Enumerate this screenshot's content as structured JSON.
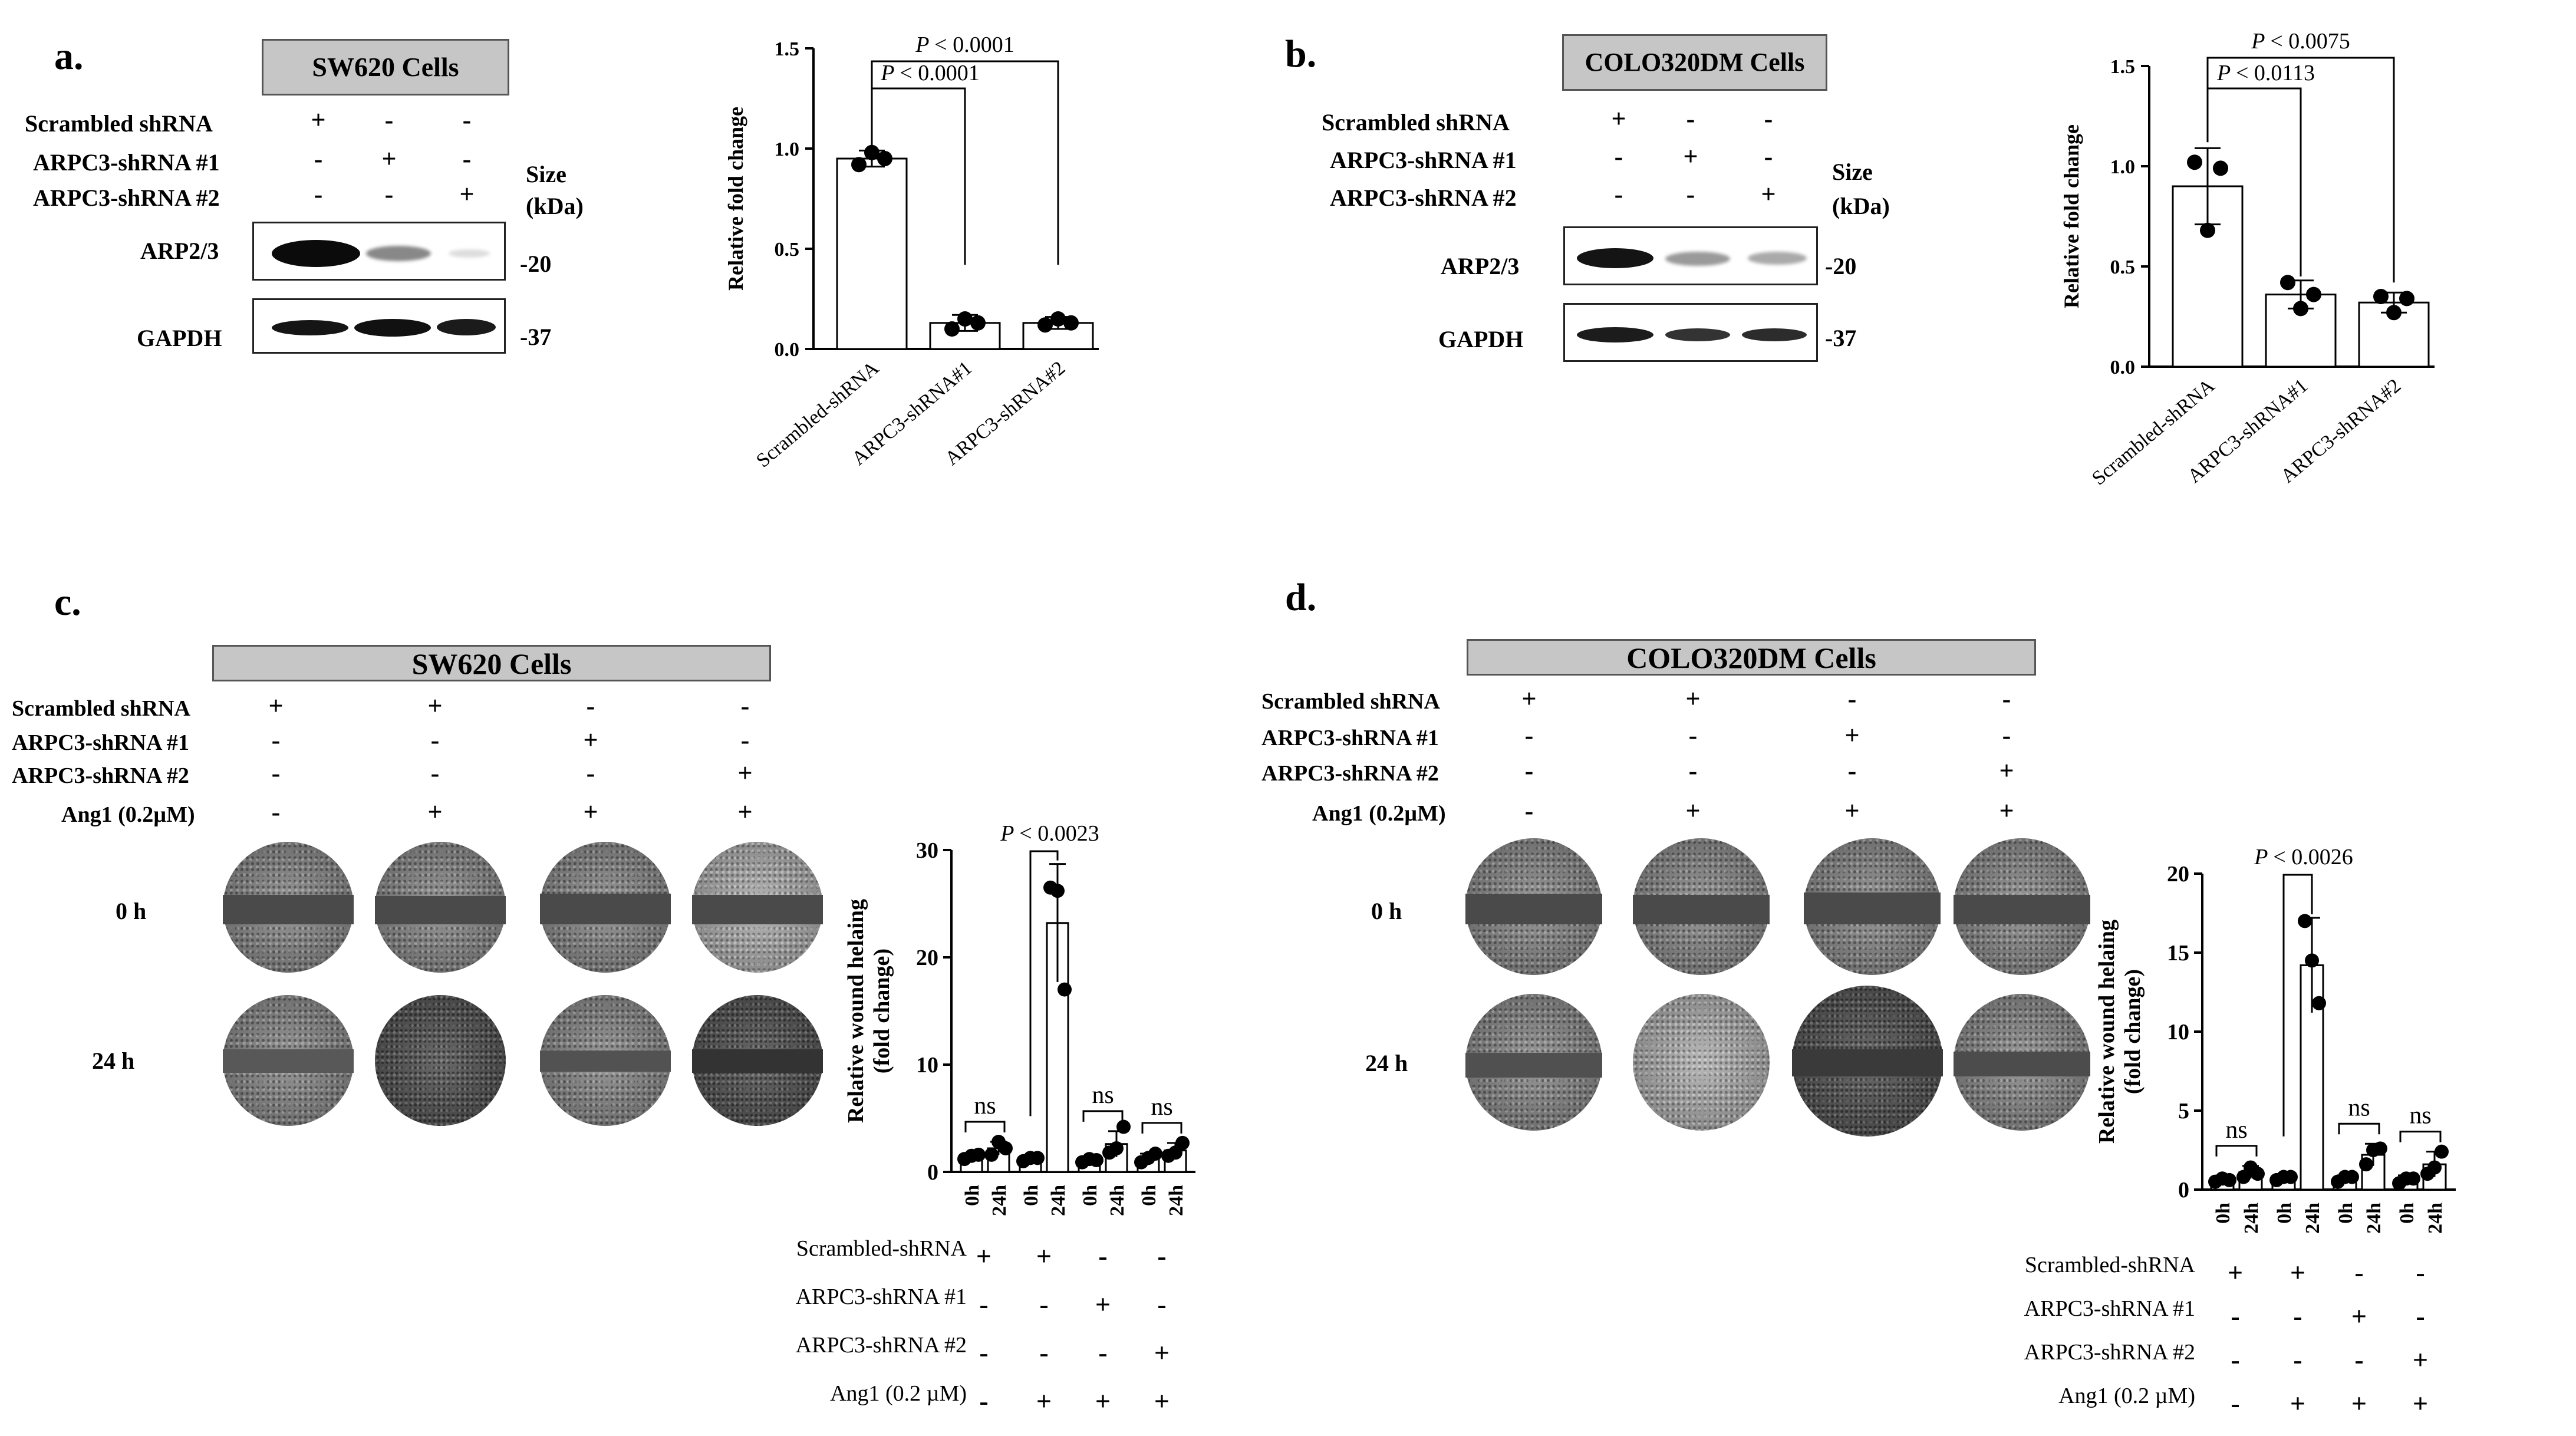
{
  "panel_a": {
    "label": "a.",
    "title": "SW620 Cells",
    "rows": [
      "Scrambled shRNA",
      "ARPC3-shRNA #1",
      "ARPC3-shRNA #2"
    ],
    "marks": [
      [
        "+",
        "-",
        "-"
      ],
      [
        "-",
        "+",
        "-"
      ],
      [
        "-",
        "-",
        "+"
      ]
    ],
    "size_label_1": "Size",
    "size_label_2": "(kDa)",
    "blot_labels": [
      "ARP2/3",
      "GAPDH"
    ],
    "kda": [
      "-20",
      "-37"
    ]
  },
  "panel_b": {
    "label": "b.",
    "title": "COLO320DM Cells",
    "rows": [
      "Scrambled shRNA",
      "ARPC3-shRNA #1",
      "ARPC3-shRNA #2"
    ],
    "marks": [
      [
        "+",
        "-",
        "-"
      ],
      [
        "-",
        "+",
        "-"
      ],
      [
        "-",
        "-",
        "+"
      ]
    ],
    "size_label_1": "Size",
    "size_label_2": "(kDa)",
    "blot_labels": [
      "ARP2/3",
      "GAPDH"
    ],
    "kda": [
      "-20",
      "-37"
    ]
  },
  "panel_c": {
    "label": "c.",
    "title": "SW620 Cells",
    "rows": [
      "Scrambled shRNA",
      "ARPC3-shRNA #1",
      "ARPC3-shRNA #2",
      "Ang1 (0.2µM)"
    ],
    "marks": [
      [
        "+",
        "+",
        "-",
        "-"
      ],
      [
        "-",
        "-",
        "+",
        "-"
      ],
      [
        "-",
        "-",
        "-",
        "+"
      ],
      [
        "-",
        "+",
        "+",
        "+"
      ]
    ],
    "time_labels": [
      "0 h",
      "24 h"
    ],
    "bottom_rows": [
      "Scrambled-shRNA",
      "ARPC3-shRNA #1",
      "ARPC3-shRNA #2",
      "Ang1 (0.2 µM)"
    ],
    "bottom_marks": [
      [
        "+",
        "+",
        "-",
        "-"
      ],
      [
        "-",
        "-",
        "+",
        "-"
      ],
      [
        "-",
        "-",
        "-",
        "+"
      ],
      [
        "-",
        "+",
        "+",
        "+"
      ]
    ]
  },
  "panel_d": {
    "label": "d.",
    "title": "COLO320DM Cells",
    "rows": [
      "Scrambled shRNA",
      "ARPC3-shRNA #1",
      "ARPC3-shRNA #2",
      "Ang1 (0.2µM)"
    ],
    "marks": [
      [
        "+",
        "+",
        "-",
        "-"
      ],
      [
        "-",
        "-",
        "+",
        "-"
      ],
      [
        "-",
        "-",
        "-",
        "+"
      ],
      [
        "-",
        "+",
        "+",
        "+"
      ]
    ],
    "time_labels": [
      "0 h",
      "24 h"
    ],
    "bottom_rows": [
      "Scrambled-shRNA",
      "ARPC3-shRNA #1",
      "ARPC3-shRNA #2",
      "Ang1 (0.2 µM)"
    ],
    "bottom_marks": [
      [
        "+",
        "+",
        "-",
        "-"
      ],
      [
        "-",
        "-",
        "+",
        "-"
      ],
      [
        "-",
        "-",
        "-",
        "+"
      ],
      [
        "-",
        "+",
        "+",
        "+"
      ]
    ]
  },
  "chart_data": [
    {
      "type": "bar",
      "panel": "a",
      "categories": [
        "Scrambled-shRNA",
        "ARPC3-shRNA#1",
        "ARPC3-shRNA#2"
      ],
      "values": [
        0.95,
        0.13,
        0.13
      ],
      "errors": [
        0.04,
        0.04,
        0.03
      ],
      "points": [
        [
          0.92,
          0.98,
          0.95
        ],
        [
          0.1,
          0.15,
          0.13
        ],
        [
          0.12,
          0.15,
          0.13
        ]
      ],
      "ylabel": "Relative  fold change",
      "ylim": [
        0,
        1.5
      ],
      "yticks": [
        "0.0",
        "0.5",
        "1.0",
        "1.5"
      ],
      "annotations": [
        "P < 0.0001",
        "P < 0.0001"
      ],
      "p_prefix": "P",
      "p_values": [
        "< 0.0001",
        "< 0.0001"
      ]
    },
    {
      "type": "bar",
      "panel": "b",
      "categories": [
        "Scrambled-shRNA",
        "ARPC3-shRNA#1",
        "ARPC3-shRNA#2"
      ],
      "values": [
        0.9,
        0.36,
        0.32
      ],
      "errors": [
        0.19,
        0.07,
        0.05
      ],
      "points": [
        [
          1.02,
          0.68,
          0.99
        ],
        [
          0.42,
          0.29,
          0.36
        ],
        [
          0.35,
          0.27,
          0.34
        ]
      ],
      "ylabel": "Relative  fold change",
      "ylim": [
        0,
        1.5
      ],
      "yticks": [
        "0.0",
        "0.5",
        "1.0",
        "1.5"
      ],
      "annotations": [
        "P < 0.0113",
        "P < 0.0075"
      ],
      "p_prefix": "P",
      "p_values": [
        "< 0.0113",
        "< 0.0075"
      ]
    },
    {
      "type": "bar",
      "panel": "c",
      "categories": [
        "0h",
        "24h",
        "0h",
        "24h",
        "0h",
        "24h",
        "0h",
        "24h"
      ],
      "values": [
        1.4,
        2.2,
        1.2,
        23.2,
        1.1,
        2.6,
        1.3,
        2.0
      ],
      "errors": [
        0.3,
        0.6,
        0.3,
        5.5,
        0.3,
        1.2,
        0.4,
        0.7
      ],
      "points": [
        [
          1.2,
          1.5,
          1.6
        ],
        [
          1.6,
          2.8,
          2.2
        ],
        [
          1.0,
          1.3,
          1.3
        ],
        [
          26.5,
          26.2,
          17.0
        ],
        [
          0.9,
          1.2,
          1.1
        ],
        [
          1.8,
          2.2,
          4.2
        ],
        [
          0.9,
          1.3,
          1.7
        ],
        [
          1.5,
          1.8,
          2.7
        ]
      ],
      "ylabel": "Relative wound helaing",
      "ylabel2": "(fold change)",
      "ylim": [
        0,
        30
      ],
      "yticks": [
        "0",
        "10",
        "20",
        "30"
      ],
      "annotations": [
        "P < 0.0023",
        "ns",
        "ns",
        "ns"
      ],
      "p_prefix": "P",
      "p_values": [
        "< 0.0023"
      ],
      "ns_label": "ns"
    },
    {
      "type": "bar",
      "panel": "d",
      "categories": [
        "0h",
        "24h",
        "0h",
        "24h",
        "0h",
        "24h",
        "0h",
        "24h"
      ],
      "values": [
        0.6,
        1.1,
        0.7,
        14.2,
        0.7,
        2.2,
        0.6,
        1.6
      ],
      "errors": [
        0.2,
        0.4,
        0.2,
        3.0,
        0.2,
        0.7,
        0.3,
        0.8
      ],
      "points": [
        [
          0.5,
          0.7,
          0.6
        ],
        [
          0.8,
          1.4,
          1.0
        ],
        [
          0.6,
          0.8,
          0.8
        ],
        [
          17.0,
          14.5,
          11.8
        ],
        [
          0.5,
          0.8,
          0.8
        ],
        [
          1.6,
          2.5,
          2.6
        ],
        [
          0.4,
          0.7,
          0.7
        ],
        [
          1.0,
          1.4,
          2.4
        ]
      ],
      "ylabel": "Relative wound helaing",
      "ylabel2": "(fold change)",
      "ylim": [
        0,
        20
      ],
      "yticks": [
        "0",
        "5",
        "10",
        "15",
        "20"
      ],
      "annotations": [
        "P < 0.0026",
        "ns",
        "ns",
        "ns"
      ],
      "p_prefix": "P",
      "p_values": [
        "< 0.0026"
      ],
      "ns_label": "ns"
    }
  ]
}
